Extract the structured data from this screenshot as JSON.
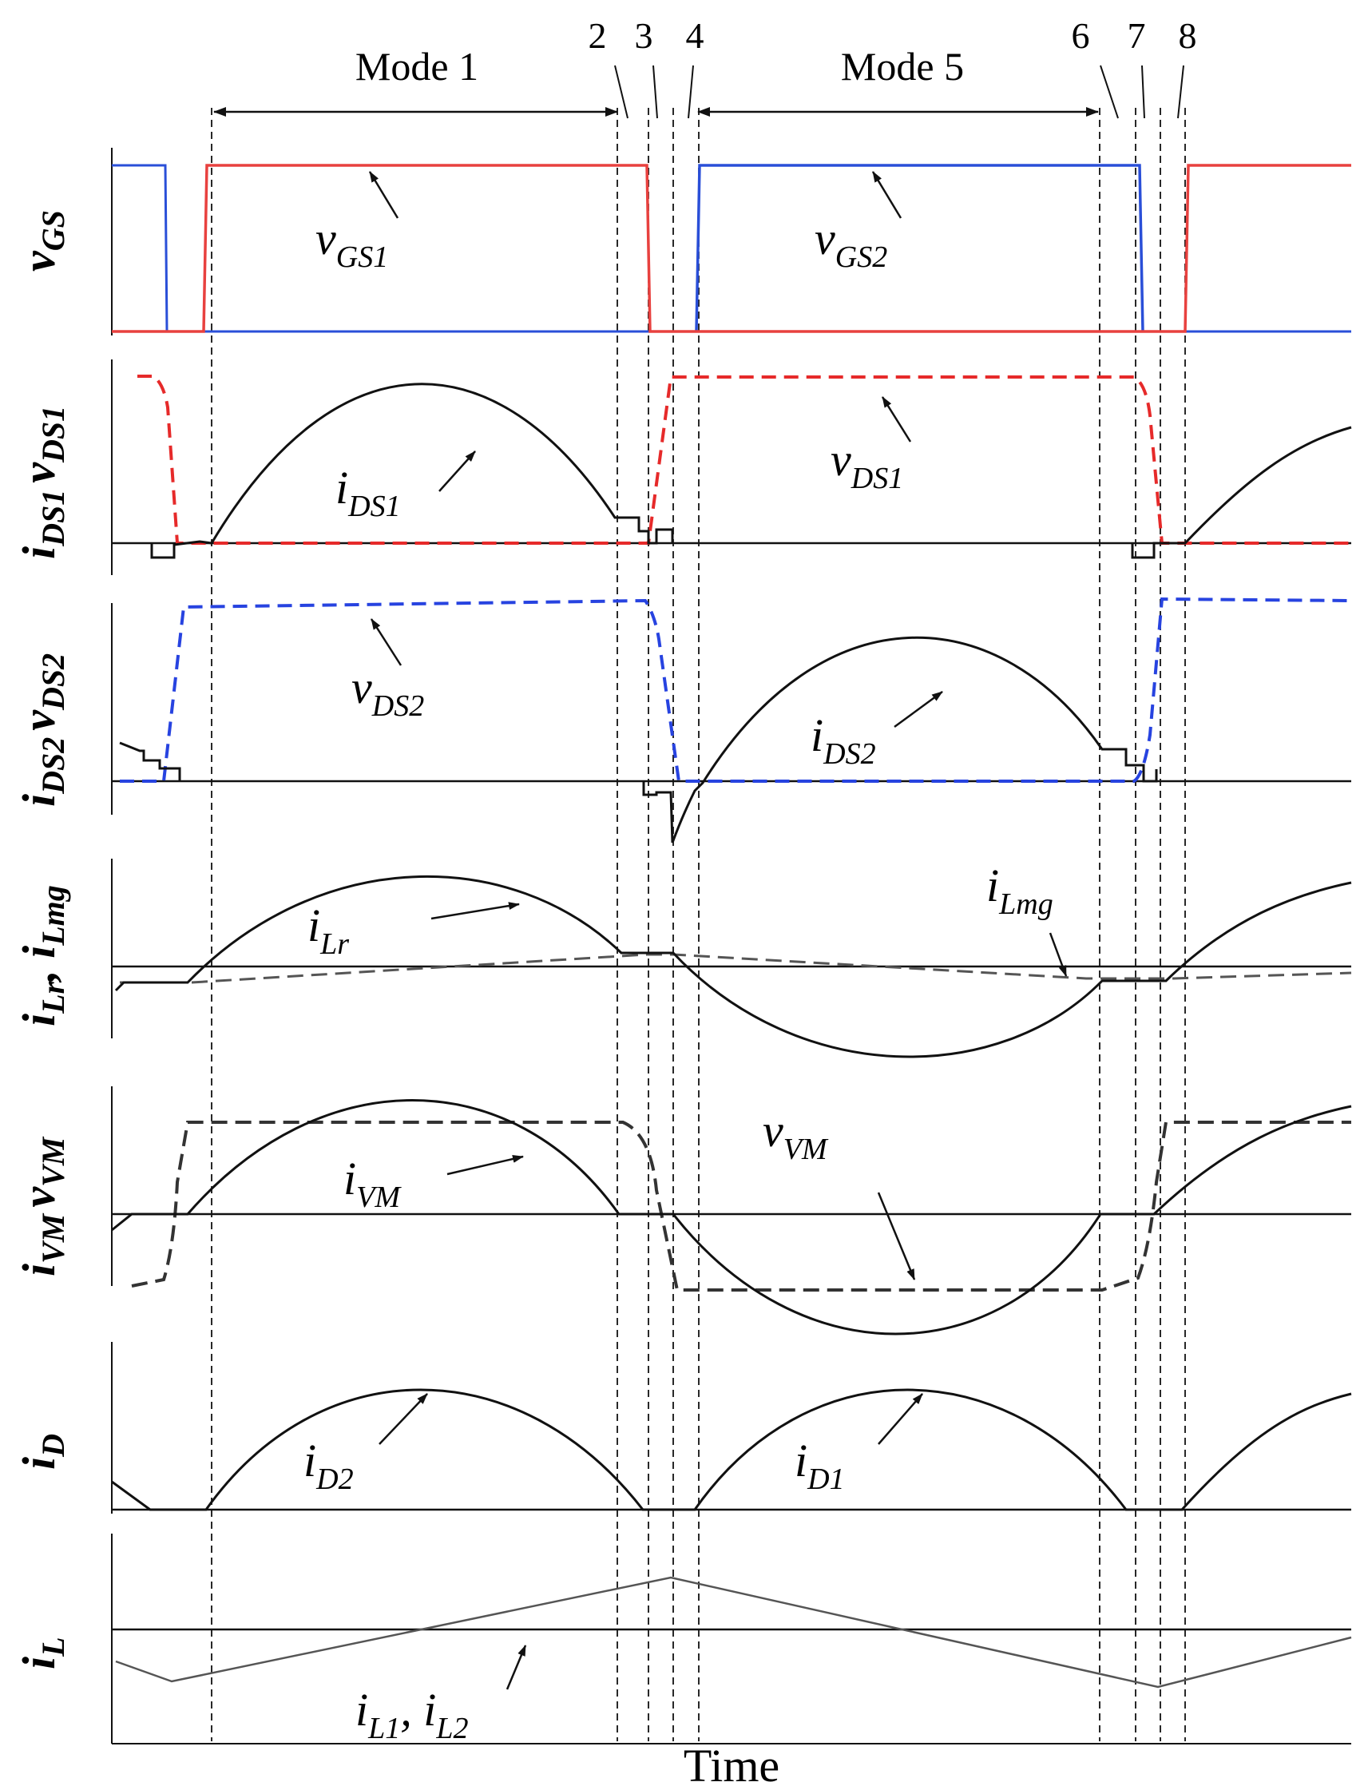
{
  "figure": {
    "x_axis_label": "Time",
    "mode_labels": {
      "mode1": "Mode 1",
      "mode5": "Mode 5"
    },
    "instant_labels": [
      "2",
      "3",
      "4",
      "6",
      "7",
      "8"
    ],
    "colors": {
      "gate1": "#e8413f",
      "gate2": "#2a4fd8",
      "vds1": "#e62a2a",
      "vds2": "#2743e0",
      "trace": "#111111",
      "dashed_gray": "#555555",
      "il": "#555555"
    }
  },
  "panels": {
    "vgs": {
      "ylabel": {
        "main": "v",
        "sub": "GS"
      },
      "annotations": [
        {
          "main": "v",
          "sub": "GS1"
        },
        {
          "main": "v",
          "sub": "GS2"
        }
      ]
    },
    "ds1": {
      "ylabel": {
        "a": "i",
        "asub": "DS1",
        "b": "v",
        "bsub": "DS1"
      },
      "annotations": [
        {
          "main": "i",
          "sub": "DS1"
        },
        {
          "main": "v",
          "sub": "DS1"
        }
      ]
    },
    "ds2": {
      "ylabel": {
        "a": "i",
        "asub": "DS2",
        "b": "v",
        "bsub": "DS2"
      },
      "annotations": [
        {
          "main": "v",
          "sub": "DS2"
        },
        {
          "main": "i",
          "sub": "DS2"
        }
      ]
    },
    "lr": {
      "ylabel": {
        "a": "i",
        "asub": "Lr",
        "sep": ", ",
        "b": "i",
        "bsub": "Lmg"
      },
      "annotations": [
        {
          "main": "i",
          "sub": "Lr"
        },
        {
          "main": "i",
          "sub": "Lmg"
        }
      ]
    },
    "vm": {
      "ylabel": {
        "a": "i",
        "asub": "VM",
        "b": "v",
        "bsub": "VM"
      },
      "annotations": [
        {
          "main": "i",
          "sub": "VM"
        },
        {
          "main": "v",
          "sub": "VM"
        }
      ]
    },
    "id": {
      "ylabel": {
        "main": "i",
        "sub": "D"
      },
      "annotations": [
        {
          "main": "i",
          "sub": "D2"
        },
        {
          "main": "i",
          "sub": "D1"
        }
      ]
    },
    "il": {
      "ylabel": {
        "main": "i",
        "sub": "L"
      },
      "annotations": [
        {
          "a": "i",
          "asub": "L1",
          "sep": ", ",
          "b": "i",
          "bsub": "L2"
        }
      ]
    }
  }
}
